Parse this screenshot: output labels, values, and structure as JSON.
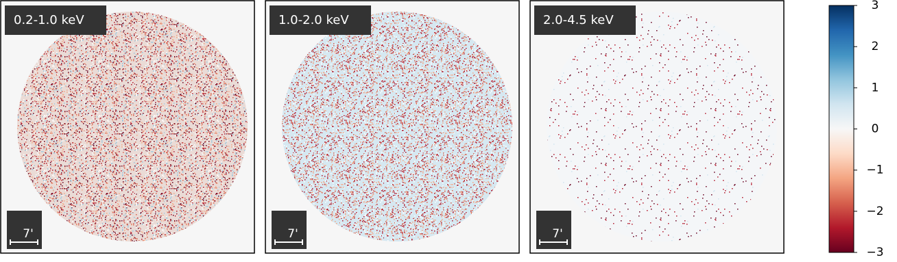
{
  "chart_data": {
    "type": "image",
    "panels": [
      {
        "label": "0.2-1.0 keV",
        "scale_label": "7'",
        "base": "#eadbd6",
        "speckle": [
          "#d6604d",
          "#b2182b",
          "#f4a582",
          "#ffffff",
          "#92c5de",
          "#67001f"
        ]
      },
      {
        "label": "1.0-2.0 keV",
        "scale_label": "7'",
        "base": "#d6e8f1",
        "speckle": [
          "#f4a582",
          "#d6604d",
          "#ffffff",
          "#b2182b"
        ]
      },
      {
        "label": "2.0-4.5 keV",
        "scale_label": "7'",
        "base": "#f4f6f8",
        "speckle": [
          "#67001f",
          "#b2182b",
          "#d1e5f0"
        ]
      }
    ],
    "colorbar": {
      "lim": [
        -3,
        3
      ],
      "ticks": [
        {
          "value": -3,
          "label": "−3"
        },
        {
          "value": -2,
          "label": "−2"
        },
        {
          "value": -1,
          "label": "−1"
        },
        0,
        1,
        2,
        3
      ],
      "colors": [
        "#67001f",
        "#b2182b",
        "#d6604d",
        "#f4a582",
        "#fddbc7",
        "#f7f7f7",
        "#d1e5f0",
        "#92c5de",
        "#4393c3",
        "#2166ac",
        "#053061"
      ]
    }
  }
}
